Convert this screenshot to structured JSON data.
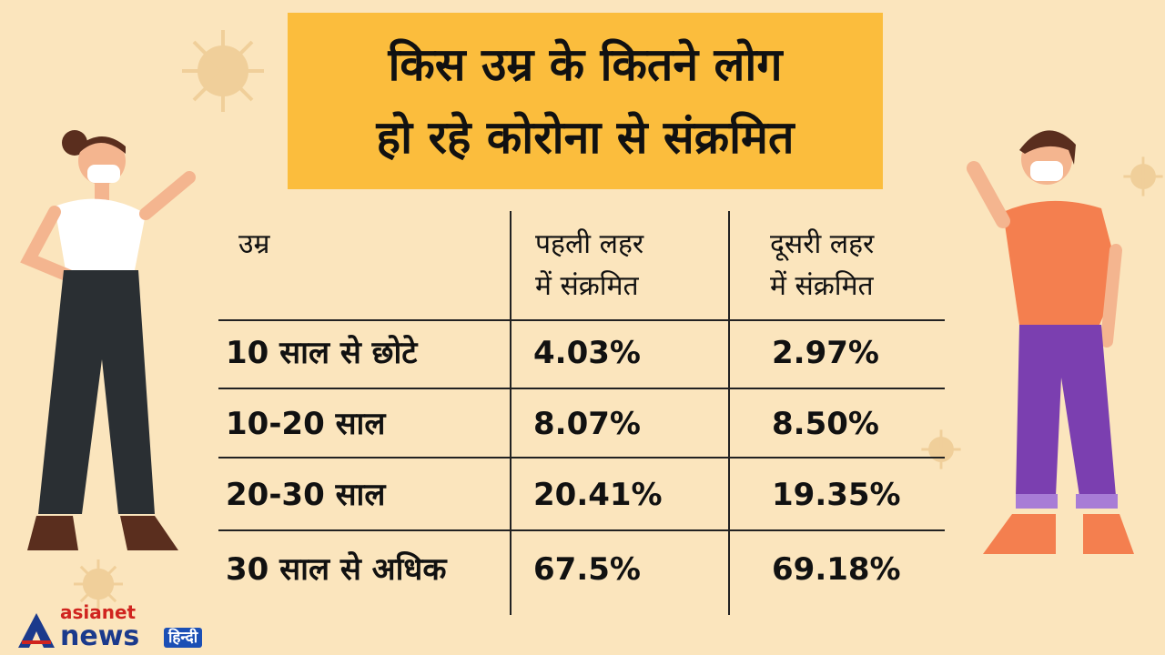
{
  "title": {
    "line1": "किस उम्र के कितने लोग",
    "line2": "हो रहे कोरोना से संक्रमित"
  },
  "colors": {
    "background": "#fbe5bd",
    "title_box": "#fbbd3d",
    "logo_red": "#d0241f",
    "logo_blue": "#1b3a8c"
  },
  "table": {
    "headers": [
      {
        "line1": "उम्र",
        "line2": ""
      },
      {
        "line1": "पहली लहर",
        "line2": "में संक्रमित"
      },
      {
        "line1": "दूसरी लहर",
        "line2": "में संक्रमित"
      }
    ],
    "rows": [
      [
        "10 साल से छोटे",
        "4.03%",
        "2.97%"
      ],
      [
        "10-20 साल",
        "8.07%",
        "8.50%"
      ],
      [
        "20-30 साल",
        "20.41%",
        "19.35%"
      ],
      [
        "30 साल से अधिक",
        "67.5%",
        "69.18%"
      ]
    ]
  },
  "chart_data": {
    "type": "table",
    "title": "किस उम्र के कितने लोग हो रहे कोरोना से संक्रमित",
    "columns": [
      "उम्र",
      "पहली लहर में संक्रमित",
      "दूसरी लहर में संक्रमित"
    ],
    "categories": [
      "10 साल से छोटे",
      "10-20 साल",
      "20-30 साल",
      "30 साल से अधिक"
    ],
    "series": [
      {
        "name": "पहली लहर में संक्रमित",
        "values": [
          4.03,
          8.07,
          20.41,
          67.5
        ]
      },
      {
        "name": "दूसरी लहर में संक्रमित",
        "values": [
          2.97,
          8.5,
          19.35,
          69.18
        ]
      }
    ]
  },
  "logo": {
    "top": "asianet",
    "bottom": "news",
    "badge": "हिन्दी"
  },
  "icons": [
    "virus-icon",
    "woman-with-mask-illustration",
    "man-with-mask-illustration"
  ]
}
